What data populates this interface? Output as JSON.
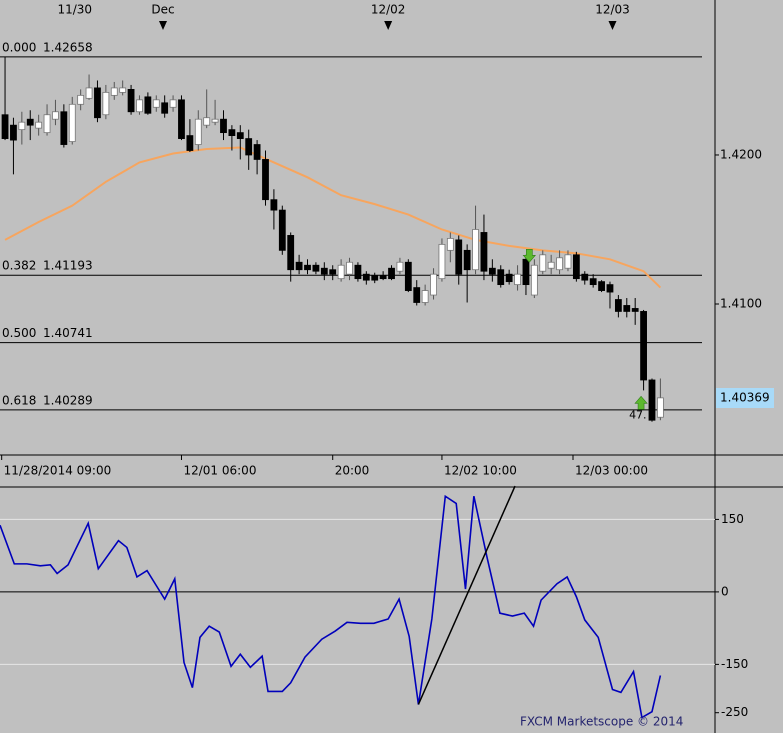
{
  "chart_data": [
    {
      "type": "candlestick",
      "xlim": [
        -0.6,
        84.5
      ],
      "xticks": [
        {
          "value": -0.4,
          "label": "11/28/2014 09:00"
        },
        {
          "value": 21,
          "label": "12/01 06:00"
        },
        {
          "value": 39,
          "label": "20:00"
        },
        {
          "value": 52,
          "label": "12/02 10:00"
        },
        {
          "value": 67.6,
          "label": "12/03 00:00"
        }
      ],
      "top_xticks": [
        {
          "value": 8.3,
          "label": "11/30"
        },
        {
          "value": 18.8,
          "label": "Dec"
        },
        {
          "value": 45.6,
          "label": "12/02"
        },
        {
          "value": 72.3,
          "label": "12/03"
        }
      ],
      "top_markers": [
        18.8,
        45.6,
        72.3
      ],
      "ylim": [
        1.4,
        1.4304
      ],
      "yticks": [
        {
          "value": 1.42,
          "label": "1.4200"
        },
        {
          "value": 1.41,
          "label": "1.4100"
        }
      ],
      "up_color": "#ffffff",
      "down_color": "#000000",
      "open": [
        1.4227,
        1.422,
        1.4217,
        1.4224,
        1.4218,
        1.4215,
        1.4224,
        1.4229,
        1.4209,
        1.4234,
        1.4238,
        1.4245,
        1.4227,
        1.424,
        1.4242,
        1.4244,
        1.4229,
        1.4239,
        1.4232,
        1.4235,
        1.4232,
        1.4237,
        1.4213,
        1.4207,
        1.422,
        1.4222,
        1.4224,
        1.4217,
        1.4215,
        1.4211,
        1.4207,
        1.4197,
        1.417,
        1.4163,
        1.4146,
        1.4128,
        1.4126,
        1.4126,
        1.4124,
        1.4123,
        1.4117,
        1.412,
        1.4126,
        1.412,
        1.4119,
        1.4119,
        1.4124,
        1.4122,
        1.4128,
        1.4111,
        1.4101,
        1.4106,
        1.4117,
        1.4136,
        1.4143,
        1.4136,
        1.4123,
        1.4148,
        1.4124,
        1.4123,
        1.412,
        1.4113,
        1.413,
        1.4106,
        1.4122,
        1.4124,
        1.4123,
        1.4124,
        1.4133,
        1.412,
        1.4117,
        1.4115,
        1.4113,
        1.4103,
        1.4099,
        1.4097,
        1.4095,
        1.4049,
        1.4024
      ],
      "high": [
        1.4266,
        1.4225,
        1.4229,
        1.423,
        1.4227,
        1.4234,
        1.4237,
        1.4234,
        1.4239,
        1.4244,
        1.4254,
        1.425,
        1.4247,
        1.4249,
        1.425,
        1.4247,
        1.424,
        1.4242,
        1.424,
        1.424,
        1.424,
        1.424,
        1.4224,
        1.423,
        1.4244,
        1.4237,
        1.423,
        1.422,
        1.422,
        1.4217,
        1.421,
        1.4203,
        1.4177,
        1.4166,
        1.4148,
        1.4133,
        1.413,
        1.4128,
        1.4128,
        1.4126,
        1.413,
        1.4131,
        1.4128,
        1.4122,
        1.4121,
        1.4122,
        1.4126,
        1.4131,
        1.413,
        1.4116,
        1.4113,
        1.4124,
        1.4144,
        1.4148,
        1.4146,
        1.414,
        1.4166,
        1.416,
        1.413,
        1.4126,
        1.4123,
        1.4126,
        1.4133,
        1.413,
        1.4136,
        1.4133,
        1.4136,
        1.4136,
        1.4135,
        1.4122,
        1.412,
        1.4116,
        1.4115,
        1.4106,
        1.4104,
        1.4104,
        1.4096,
        1.405,
        1.405
      ],
      "low": [
        1.421,
        1.4187,
        1.4207,
        1.421,
        1.4213,
        1.4213,
        1.422,
        1.4205,
        1.4207,
        1.423,
        1.4237,
        1.4222,
        1.4224,
        1.4237,
        1.424,
        1.4227,
        1.4227,
        1.4227,
        1.4229,
        1.4225,
        1.4229,
        1.421,
        1.4202,
        1.4203,
        1.4218,
        1.422,
        1.421,
        1.4203,
        1.4197,
        1.419,
        1.4187,
        1.4166,
        1.415,
        1.4133,
        1.4115,
        1.412,
        1.412,
        1.412,
        1.4116,
        1.4116,
        1.4115,
        1.4116,
        1.4115,
        1.4113,
        1.4114,
        1.4116,
        1.4116,
        1.412,
        1.4108,
        1.4099,
        1.4099,
        1.4103,
        1.4115,
        1.4128,
        1.4113,
        1.4101,
        1.412,
        1.4116,
        1.4115,
        1.4111,
        1.4113,
        1.4109,
        1.4106,
        1.4104,
        1.412,
        1.412,
        1.412,
        1.4122,
        1.4115,
        1.4113,
        1.4111,
        1.4108,
        1.4097,
        1.4091,
        1.4091,
        1.4086,
        1.4042,
        1.4021,
        1.4022
      ],
      "close": [
        1.4211,
        1.421,
        1.4222,
        1.422,
        1.4222,
        1.4227,
        1.4229,
        1.4207,
        1.4234,
        1.424,
        1.4245,
        1.4225,
        1.4242,
        1.4245,
        1.4245,
        1.4229,
        1.4237,
        1.4228,
        1.4237,
        1.4228,
        1.4237,
        1.4211,
        1.4203,
        1.4224,
        1.4225,
        1.4224,
        1.4215,
        1.4213,
        1.4211,
        1.42,
        1.4197,
        1.417,
        1.4163,
        1.4136,
        1.4123,
        1.4123,
        1.4123,
        1.4122,
        1.412,
        1.412,
        1.4126,
        1.4128,
        1.4117,
        1.4116,
        1.4116,
        1.4117,
        1.4117,
        1.4128,
        1.4109,
        1.4101,
        1.4109,
        1.412,
        1.414,
        1.4144,
        1.412,
        1.4123,
        1.415,
        1.4122,
        1.412,
        1.4113,
        1.4115,
        1.412,
        1.4113,
        1.4126,
        1.4133,
        1.4128,
        1.4131,
        1.4133,
        1.4117,
        1.4116,
        1.4113,
        1.4109,
        1.4108,
        1.4095,
        1.4095,
        1.4095,
        1.4049,
        1.4022,
        1.4037
      ],
      "moving_average": {
        "color": "#f7a55e",
        "x": [
          0,
          4,
          8,
          12,
          16,
          20,
          24,
          28,
          32,
          36,
          40,
          44,
          48,
          52,
          56,
          60,
          64,
          68,
          72,
          76,
          78
        ],
        "values": [
          1.4143,
          1.4155,
          1.4166,
          1.4182,
          1.4195,
          1.4201,
          1.4204,
          1.4205,
          1.4195,
          1.4185,
          1.4173,
          1.4167,
          1.416,
          1.415,
          1.4143,
          1.4139,
          1.4136,
          1.4134,
          1.413,
          1.4122,
          1.4111
        ]
      },
      "fib_levels": [
        {
          "ratio": {
            "value": 0,
            "label": "0.000"
          },
          "price": 1.42658
        },
        {
          "ratio": 0.382,
          "price": 1.41193
        },
        {
          "ratio": {
            "value": 0.5,
            "label": "0.500"
          },
          "price": 1.40741
        },
        {
          "ratio": 0.618,
          "price": 1.40289
        }
      ],
      "last_price": 1.40369,
      "last_price_color": "#a8daf8",
      "signals": [
        {
          "x": 62.4,
          "value": 1.4132,
          "direction": "down"
        },
        {
          "x": 75.7,
          "value": 1.4034,
          "direction": "up"
        }
      ],
      "signal_color": "#5cb82e",
      "signal_label": "47."
    },
    {
      "type": "line",
      "xlim": [
        -0.6,
        84.5
      ],
      "ylim": [
        -292,
        215
      ],
      "yticks": [
        150,
        0,
        -150,
        -250
      ],
      "hlines": [
        {
          "value": 150,
          "color": "#e6e6e6"
        },
        {
          "value": 0,
          "color": "#000000"
        },
        {
          "value": -150,
          "color": "#e6e6e6"
        }
      ],
      "color": "#0000bb",
      "x": [
        -0.6,
        1.1,
        2.6,
        4.2,
        5.4,
        6.2,
        7.5,
        9.9,
        11.1,
        13.5,
        14.5,
        15.7,
        16.9,
        19.0,
        20.2,
        21.3,
        22.3,
        23.2,
        24.3,
        25.5,
        26.9,
        28.0,
        29.2,
        30.6,
        31.3,
        33.0,
        34.0,
        35.7,
        37.7,
        39.3,
        40.7,
        42.3,
        43.9,
        45.6,
        46.9,
        48.1,
        49.2,
        50.8,
        52.4,
        53.7,
        54.8,
        55.8,
        57.4,
        58.9,
        60.4,
        61.8,
        62.9,
        63.8,
        65.7,
        66.9,
        68.0,
        69.0,
        70.6,
        72.3,
        73.3,
        74.8,
        75.8,
        77.0,
        78.0
      ],
      "values": [
        138,
        58,
        58,
        54,
        56,
        38,
        56,
        142,
        48,
        106,
        92,
        31,
        44,
        -15,
        27,
        -146,
        -198,
        -94,
        -71,
        -83,
        -154,
        -129,
        -156,
        -133,
        -206,
        -206,
        -188,
        -135,
        -98,
        -81,
        -63,
        -65,
        -65,
        -56,
        -15,
        -92,
        -233,
        -56,
        198,
        183,
        6,
        198,
        69,
        -44,
        -50,
        -44,
        -71,
        -17,
        17,
        31,
        -10,
        -58,
        -94,
        -202,
        -208,
        -165,
        -260,
        -248,
        -173
      ],
      "trendline": {
        "x": [
          49.2,
          60.7
        ],
        "values": [
          -233,
          219
        ],
        "color": "#000000"
      }
    }
  ],
  "footer": "FXCM Marketscope © 2014"
}
